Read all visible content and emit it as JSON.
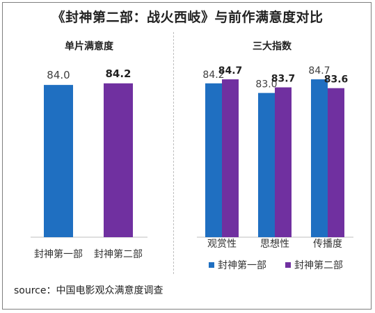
{
  "title": "《封神第二部：战火西岐》与前作满意度对比",
  "source": "source：中国电影观众满意度调查",
  "colors": {
    "series1": "#1f6fc1",
    "series2": "#7030a0"
  },
  "chart_data": [
    {
      "type": "bar",
      "title": "单片满意度",
      "categories": [
        "封神第一部",
        "封神第二部"
      ],
      "values": [
        84.0,
        84.2
      ],
      "value_labels": [
        "84.0",
        "84.2"
      ],
      "highlight": [
        false,
        true
      ],
      "ylim": [
        65,
        86
      ]
    },
    {
      "type": "bar",
      "title": "三大指数",
      "categories": [
        "观赏性",
        "思想性",
        "传播度"
      ],
      "series": [
        {
          "name": "封神第一部",
          "values": [
            84.2,
            83.0,
            84.7
          ],
          "value_labels": [
            "84.2",
            "83.0",
            "84.7"
          ]
        },
        {
          "name": "封神第二部",
          "values": [
            84.7,
            83.7,
            83.6
          ],
          "value_labels": [
            "84.7",
            "83.7",
            "83.6"
          ]
        }
      ],
      "legend": "bottom",
      "ylim": [
        65,
        86
      ]
    }
  ]
}
